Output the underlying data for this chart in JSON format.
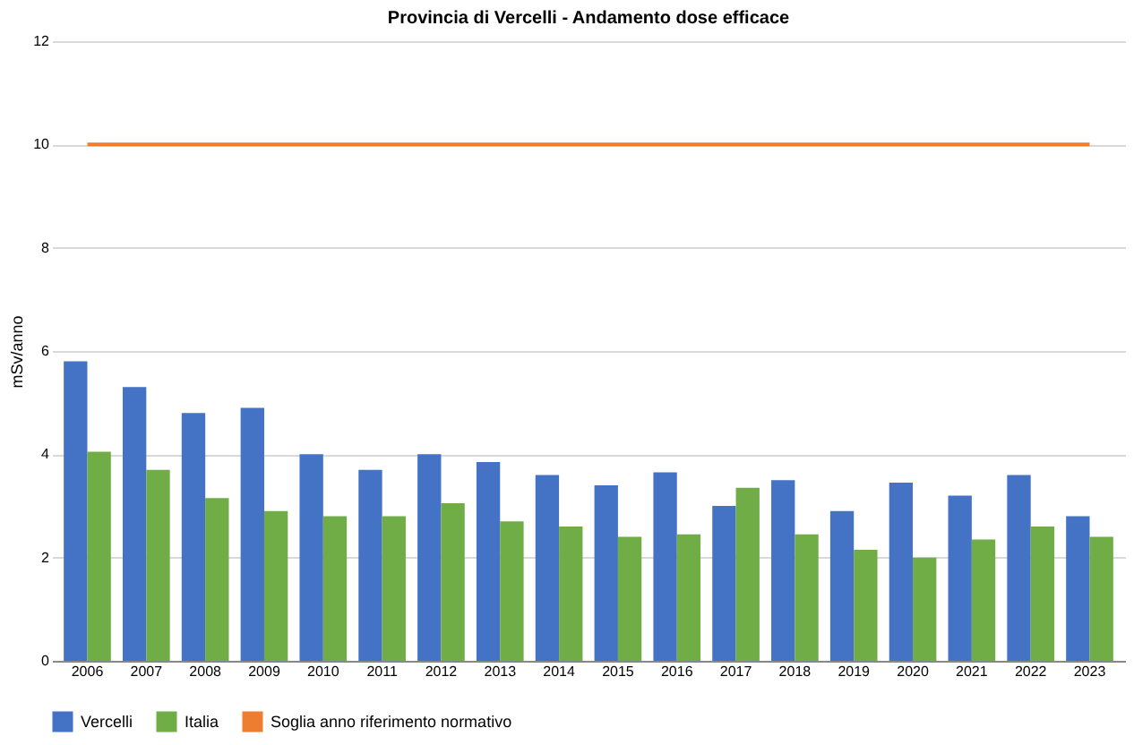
{
  "chart_data": {
    "type": "bar",
    "title": "Provincia di Vercelli - Andamento dose efficace",
    "ylabel": "mSv/anno",
    "categories": [
      "2006",
      "2007",
      "2008",
      "2009",
      "2010",
      "2011",
      "2012",
      "2013",
      "2014",
      "2015",
      "2016",
      "2017",
      "2018",
      "2019",
      "2020",
      "2021",
      "2022",
      "2023"
    ],
    "series": [
      {
        "name": "Vercelli",
        "color": "#4472c4",
        "values": [
          5.8,
          5.3,
          4.8,
          4.9,
          4.0,
          3.7,
          4.0,
          3.85,
          3.6,
          3.4,
          3.65,
          3.0,
          3.5,
          2.9,
          3.45,
          3.2,
          3.6,
          2.8
        ]
      },
      {
        "name": "Italia",
        "color": "#70ad47",
        "values": [
          4.05,
          3.7,
          3.15,
          2.9,
          2.8,
          2.8,
          3.05,
          2.7,
          2.6,
          2.4,
          2.45,
          3.35,
          2.45,
          2.15,
          2.0,
          2.35,
          2.6,
          2.4
        ]
      },
      {
        "name": "Soglia anno riferimento normativo",
        "color": "#ed7d31",
        "type": "line",
        "values": [
          10,
          10,
          10,
          10,
          10,
          10,
          10,
          10,
          10,
          10,
          10,
          10,
          10,
          10,
          10,
          10,
          10,
          10
        ]
      }
    ],
    "ylim": [
      0,
      12
    ],
    "yticks": [
      0,
      2,
      4,
      6,
      8,
      10,
      12
    ],
    "grid": "y",
    "legend": "bottom"
  }
}
